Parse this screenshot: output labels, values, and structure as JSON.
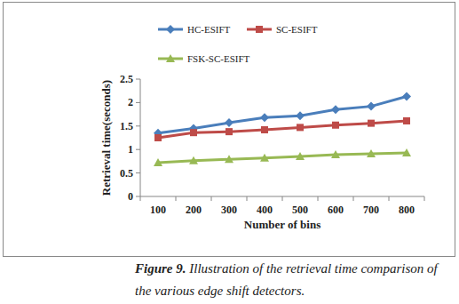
{
  "chart_data": {
    "type": "line",
    "x_label": "Number of bins",
    "y_label": "Retrieval time(seconds)",
    "annotations": [
      "Figure 9.",
      "Illustration of the retrieval time comparison of the various edge shift detectors."
    ],
    "categories": [
      "100",
      "200",
      "300",
      "400",
      "500",
      "600",
      "700",
      "800"
    ],
    "series": [
      {
        "name": "HC-ESIFT",
        "color": "#4a7ebb",
        "marker": "diamond",
        "values": [
          1.35,
          1.45,
          1.57,
          1.68,
          1.72,
          1.85,
          1.92,
          2.13
        ]
      },
      {
        "name": "SC-ESIFT",
        "color": "#be4b48",
        "marker": "square",
        "values": [
          1.25,
          1.36,
          1.38,
          1.42,
          1.47,
          1.52,
          1.56,
          1.61
        ]
      },
      {
        "name": "FSK-SC-ESIFT",
        "color": "#98b954",
        "marker": "triangle",
        "values": [
          0.72,
          0.76,
          0.79,
          0.82,
          0.85,
          0.89,
          0.91,
          0.93
        ]
      }
    ],
    "ylim": [
      0,
      2.5
    ],
    "yticks": [
      0,
      {
        "value": 0.5,
        "label": "0.5"
      },
      1,
      {
        "value": 1.5,
        "label": "1.5"
      },
      2,
      {
        "value": 2.5,
        "label": "2.5"
      }
    ],
    "grid": false,
    "legend": "top"
  }
}
